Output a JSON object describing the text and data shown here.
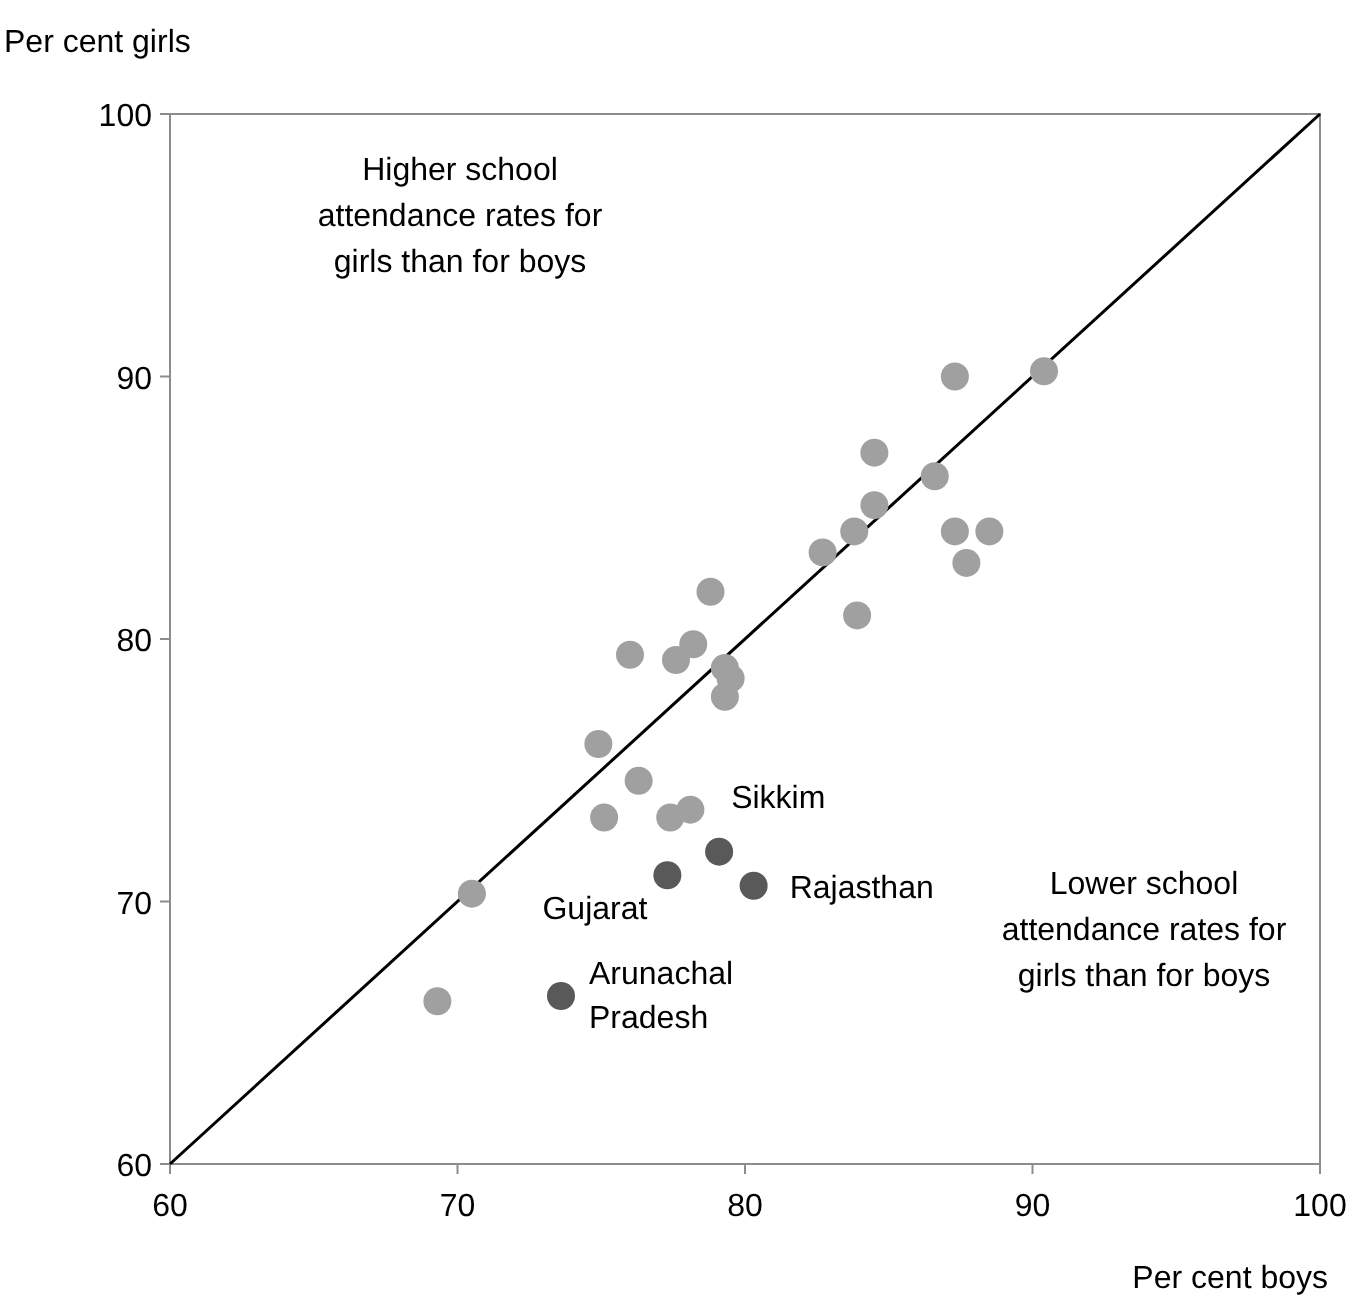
{
  "chart_data": {
    "type": "scatter",
    "xlabel": "Per cent boys",
    "ylabel": "Per cent girls",
    "xlim": [
      60,
      100
    ],
    "xticks": [
      60,
      70,
      80,
      90,
      100
    ],
    "ylim": [
      60,
      100
    ],
    "yticks": [
      60,
      70,
      80,
      90,
      100
    ],
    "grid": false,
    "series": [
      {
        "type": "line",
        "color": "#000000",
        "x": [
          60,
          100
        ],
        "values": [
          60,
          100
        ],
        "marker": "none"
      },
      {
        "color": "#a0a0a0",
        "marker": "circle",
        "x": [
          90.4,
          87.3,
          84.5,
          86.6,
          84.5,
          83.8,
          82.7,
          87.3,
          88.5,
          87.7,
          83.9,
          78.8,
          76.0,
          77.6,
          78.2,
          79.3,
          79.5,
          79.3,
          74.9,
          76.3,
          75.1,
          77.4,
          78.1,
          70.5,
          69.3
        ],
        "values": [
          90.2,
          90.0,
          87.1,
          86.2,
          85.1,
          84.1,
          83.3,
          84.1,
          84.1,
          82.9,
          80.9,
          81.8,
          79.4,
          79.2,
          79.8,
          78.9,
          78.5,
          77.8,
          76.0,
          74.6,
          73.2,
          73.2,
          73.5,
          70.3,
          66.2
        ]
      },
      {
        "color": "#595959",
        "marker": "circle",
        "x": [
          79.1,
          77.3,
          80.3,
          73.6
        ],
        "values": [
          71.9,
          71.0,
          70.6,
          66.4
        ]
      }
    ],
    "annotations": [
      "Higher school attendance rates for girls than for boys",
      "Lower school attendance rates for girls than for boys",
      {
        "text": "Sikkim",
        "x": 79.1,
        "y": 71.9
      },
      {
        "text": "Gujarat",
        "x": 77.3,
        "y": 71.0
      },
      {
        "text": "Rajasthan",
        "x": 80.3,
        "y": 70.6
      },
      {
        "text": "Arunachal Pradesh",
        "x": 73.6,
        "y": 66.4
      }
    ]
  }
}
